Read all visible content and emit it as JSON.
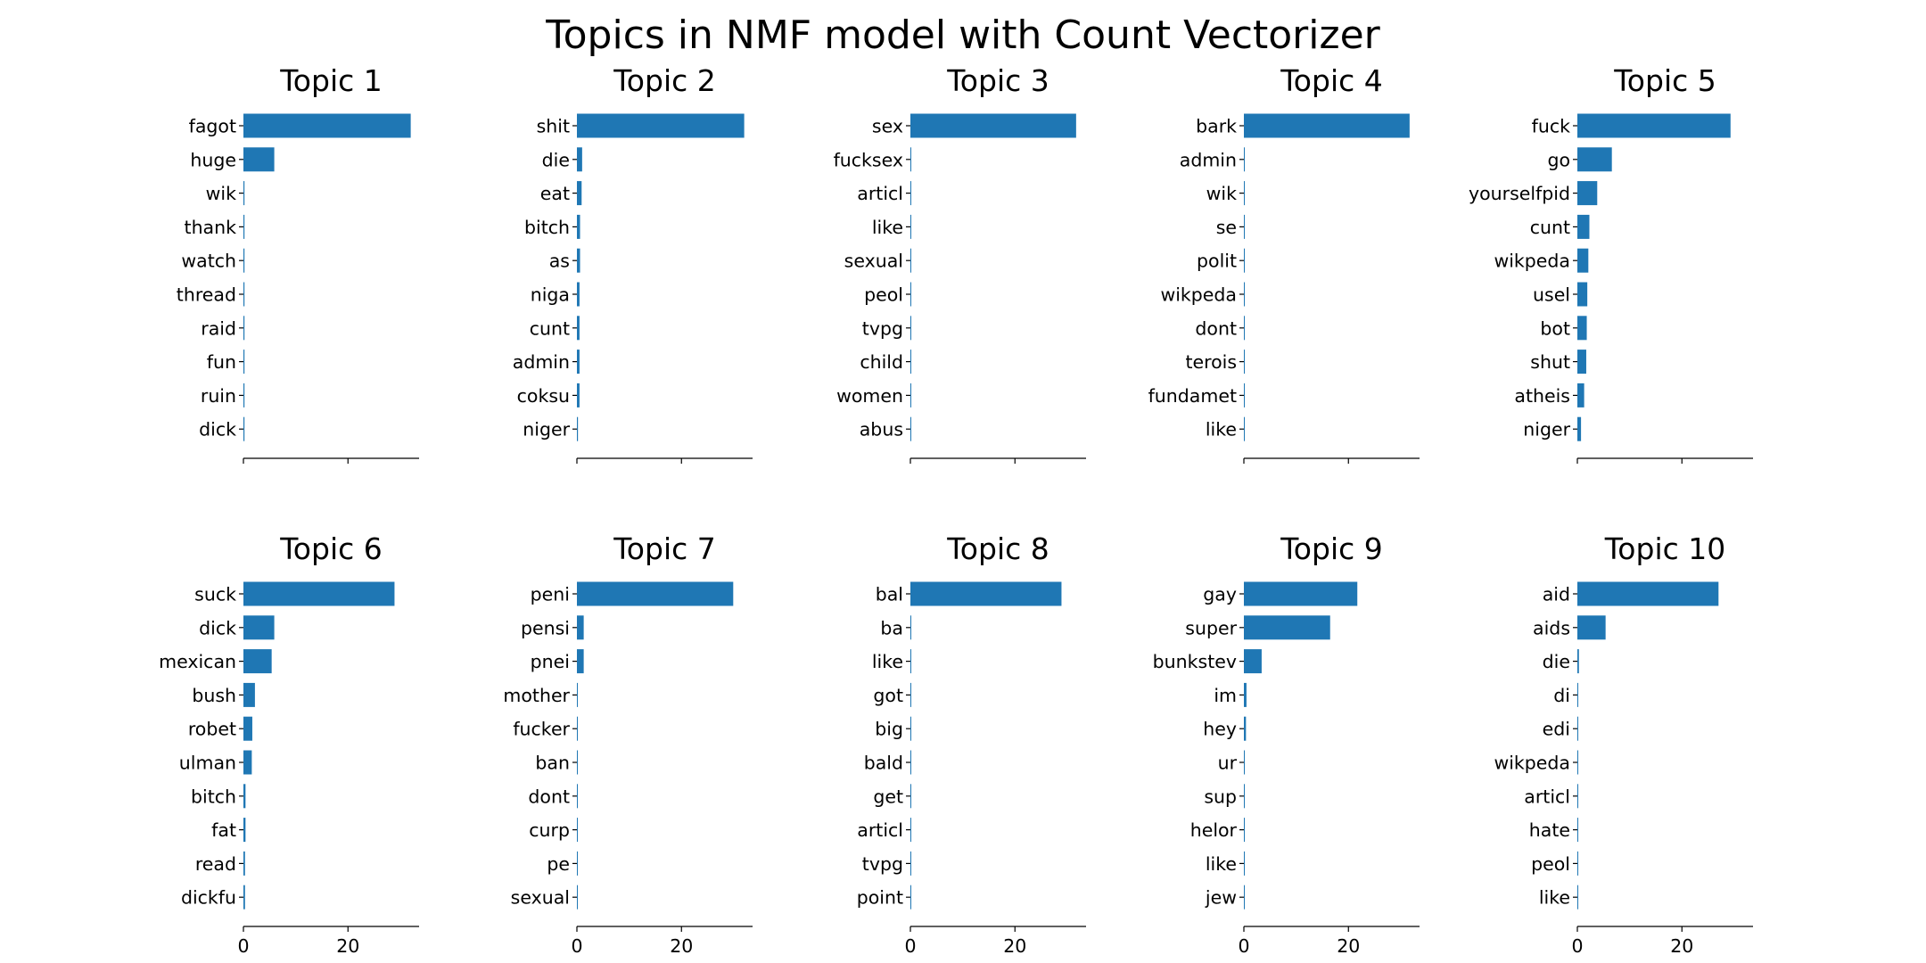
{
  "chart_data": {
    "type": "bar",
    "orientation": "horizontal",
    "title": "Topics in NMF model with Count Vectorizer",
    "bar_color": "#1f77b4",
    "xlim": [
      0,
      33.6
    ],
    "xticks": [
      0,
      20
    ],
    "grid": false,
    "legend": "none",
    "panels": [
      {
        "title": "Topic 1",
        "categories": [
          "fagot",
          "huge",
          "wik",
          "thank",
          "watch",
          "thread",
          "raid",
          "fun",
          "ruin",
          "dick"
        ],
        "values": [
          32.0,
          5.9,
          0.2,
          0.2,
          0.2,
          0.2,
          0.2,
          0.2,
          0.2,
          0.2
        ],
        "show_xticklabels": false
      },
      {
        "title": "Topic 2",
        "categories": [
          "shit",
          "die",
          "eat",
          "bitch",
          "as",
          "niga",
          "cunt",
          "admin",
          "coksu",
          "niger"
        ],
        "values": [
          32.0,
          1.0,
          0.9,
          0.6,
          0.6,
          0.5,
          0.5,
          0.5,
          0.5,
          0.2
        ],
        "show_xticklabels": false
      },
      {
        "title": "Topic 3",
        "categories": [
          "sex",
          "fucksex",
          "articl",
          "like",
          "sexual",
          "peol",
          "tvpg",
          "child",
          "women",
          "abus"
        ],
        "values": [
          31.7,
          0.1,
          0.1,
          0.1,
          0.1,
          0.1,
          0.1,
          0.1,
          0.1,
          0.1
        ],
        "show_xticklabels": false
      },
      {
        "title": "Topic 4",
        "categories": [
          "bark",
          "admin",
          "wik",
          "se",
          "polit",
          "wikpeda",
          "dont",
          "terois",
          "fundamet",
          "like"
        ],
        "values": [
          31.7,
          0.1,
          0.1,
          0.1,
          0.1,
          0.1,
          0.1,
          0.1,
          0.1,
          0.1
        ],
        "show_xticklabels": false
      },
      {
        "title": "Topic 5",
        "categories": [
          "fuck",
          "go",
          "yourselfpid",
          "cunt",
          "wikpeda",
          "usel",
          "bot",
          "shut",
          "atheis",
          "niger"
        ],
        "values": [
          29.3,
          6.6,
          3.8,
          2.3,
          2.1,
          1.9,
          1.8,
          1.7,
          1.3,
          0.7
        ],
        "show_xticklabels": false
      },
      {
        "title": "Topic 6",
        "categories": [
          "suck",
          "dick",
          "mexican",
          "bush",
          "robet",
          "ulman",
          "bitch",
          "fat",
          "read",
          "dickfu"
        ],
        "values": [
          28.9,
          5.9,
          5.4,
          2.2,
          1.7,
          1.6,
          0.4,
          0.4,
          0.3,
          0.3
        ],
        "show_xticklabels": true
      },
      {
        "title": "Topic 7",
        "categories": [
          "peni",
          "pensi",
          "pnei",
          "mother",
          "fucker",
          "ban",
          "dont",
          "curp",
          "pe",
          "sexual"
        ],
        "values": [
          29.9,
          1.3,
          1.3,
          0.1,
          0.1,
          0.1,
          0.1,
          0.1,
          0.1,
          0.1
        ],
        "show_xticklabels": true
      },
      {
        "title": "Topic 8",
        "categories": [
          "bal",
          "ba",
          "like",
          "got",
          "big",
          "bald",
          "get",
          "articl",
          "tvpg",
          "point"
        ],
        "values": [
          28.9,
          0.1,
          0.1,
          0.1,
          0.1,
          0.1,
          0.1,
          0.1,
          0.1,
          0.1
        ],
        "show_xticklabels": true
      },
      {
        "title": "Topic 9",
        "categories": [
          "gay",
          "super",
          "bunkstev",
          "im",
          "hey",
          "ur",
          "sup",
          "helor",
          "like",
          "jew"
        ],
        "values": [
          21.7,
          16.5,
          3.4,
          0.5,
          0.4,
          0.1,
          0.1,
          0.1,
          0.1,
          0.1
        ],
        "show_xticklabels": true
      },
      {
        "title": "Topic 10",
        "categories": [
          "aid",
          "aids",
          "die",
          "di",
          "edi",
          "wikpeda",
          "articl",
          "hate",
          "peol",
          "like"
        ],
        "values": [
          27.0,
          5.4,
          0.3,
          0.1,
          0.1,
          0.1,
          0.1,
          0.1,
          0.1,
          0.1
        ],
        "show_xticklabels": true
      }
    ]
  }
}
